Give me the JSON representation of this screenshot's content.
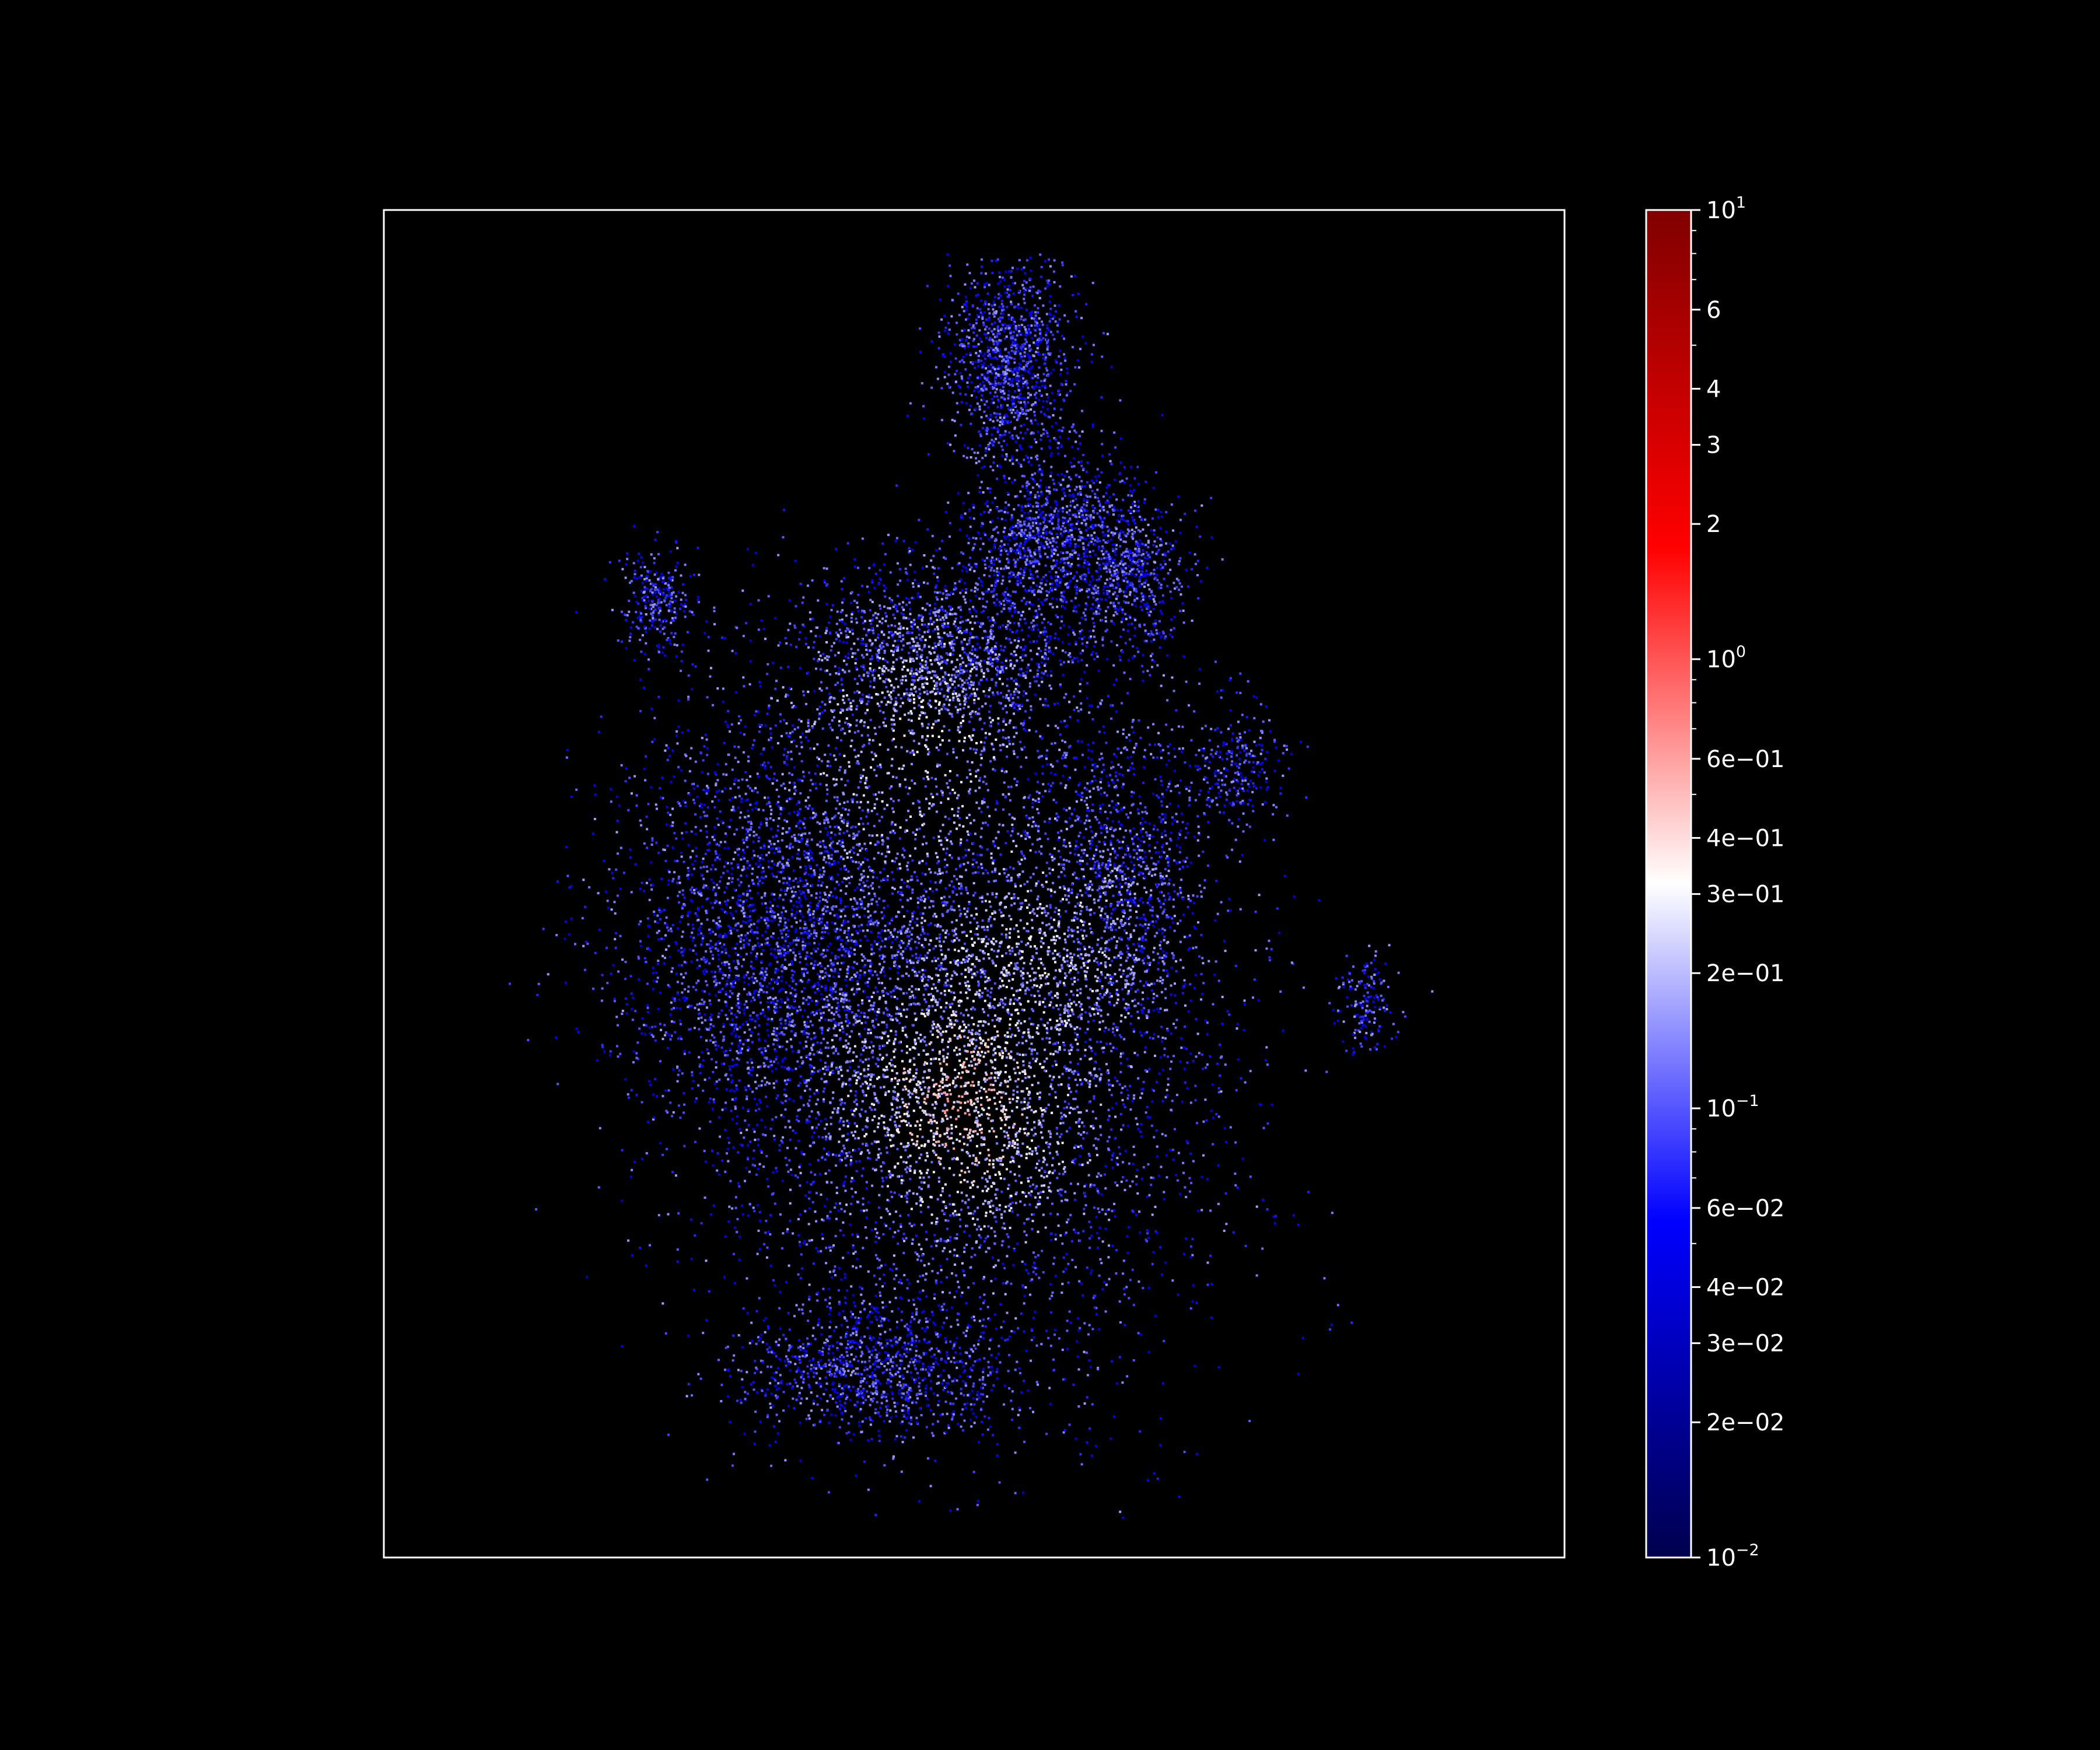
{
  "chart_data": {
    "type": "scatter",
    "title": "",
    "xlabel": "",
    "ylabel": "",
    "axes_ticks_visible": false,
    "grid": false,
    "background": "#000000",
    "frame_color": "#ffffff",
    "colorbar": {
      "scale": "log",
      "range": [
        0.01,
        10
      ],
      "colormap": [
        "#00004d",
        "#0000ff",
        "#ffffff",
        "#ff0000",
        "#800000"
      ],
      "placement": "right",
      "ticks": [
        {
          "value": 10,
          "base": "10",
          "exp": "1"
        },
        {
          "value": 6,
          "text": "6"
        },
        {
          "value": 4,
          "text": "4"
        },
        {
          "value": 3,
          "text": "3"
        },
        {
          "value": 2,
          "text": "2"
        },
        {
          "value": 1,
          "base": "10",
          "exp": "0"
        },
        {
          "value": 0.6,
          "text": "6e−01"
        },
        {
          "value": 0.4,
          "text": "4e−01"
        },
        {
          "value": 0.3,
          "text": "3e−01"
        },
        {
          "value": 0.2,
          "text": "2e−01"
        },
        {
          "value": 0.1,
          "base": "10",
          "exp": "−1"
        },
        {
          "value": 0.06,
          "text": "6e−02"
        },
        {
          "value": 0.04,
          "text": "4e−02"
        },
        {
          "value": 0.03,
          "text": "3e−02"
        },
        {
          "value": 0.02,
          "text": "2e−02"
        },
        {
          "value": 0.01,
          "base": "10",
          "exp": "−2"
        }
      ],
      "minor_ticks": [
        8,
        9,
        7,
        5,
        0.9,
        0.8,
        0.7,
        0.5,
        0.09,
        0.08,
        0.07,
        0.05
      ]
    },
    "point_cloud": {
      "description_free": true,
      "hot_centers": [
        {
          "x": 0.49,
          "y": 0.66,
          "strength": 1.0
        },
        {
          "x": 0.45,
          "y": 0.4,
          "strength": 0.6
        },
        {
          "x": 0.54,
          "y": 0.56,
          "strength": 0.6
        }
      ]
    }
  }
}
